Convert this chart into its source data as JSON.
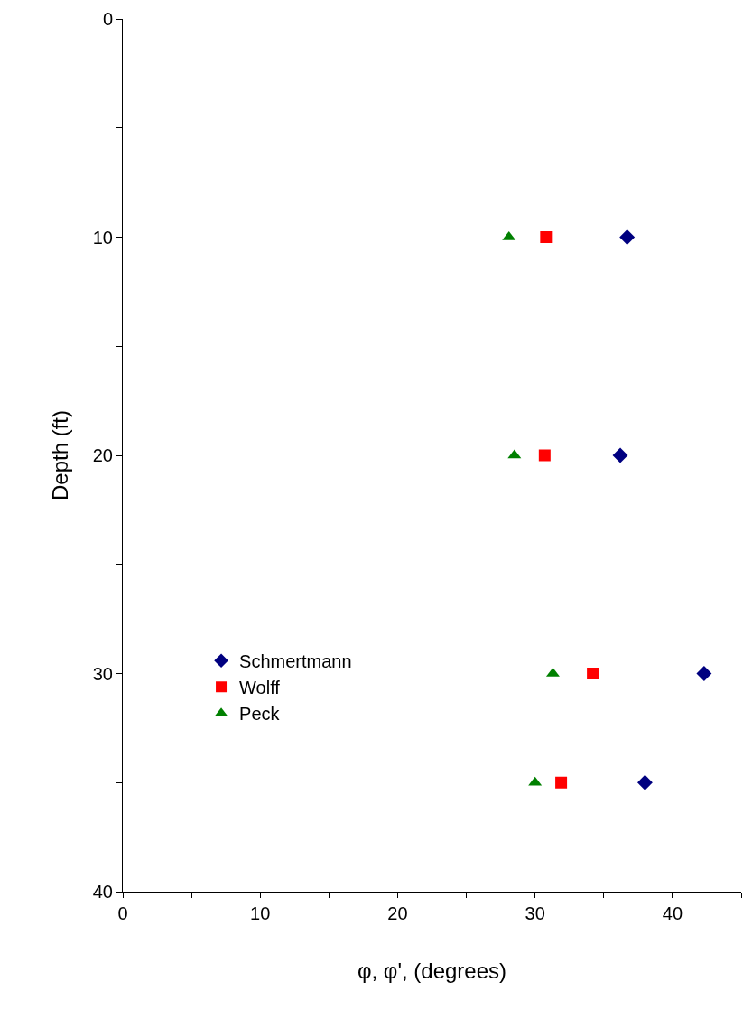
{
  "chart_data": {
    "type": "scatter",
    "xlabel": "φ, φ', (degrees)",
    "ylabel": "Depth (ft)",
    "xlim": [
      0,
      45
    ],
    "ylim": [
      40,
      0
    ],
    "xticks": [
      0,
      {
        "value": 5,
        "label": null
      },
      10,
      {
        "value": 15,
        "label": null
      },
      20,
      {
        "value": 25,
        "label": null
      },
      30,
      {
        "value": 35,
        "label": null
      },
      40,
      {
        "value": 45,
        "label": null
      }
    ],
    "yticks": [
      0,
      {
        "value": 5,
        "label": null
      },
      10,
      {
        "value": 15,
        "label": null
      },
      20,
      {
        "value": 25,
        "label": null
      },
      30,
      {
        "value": 35,
        "label": null
      },
      40
    ],
    "legend": "left",
    "series": [
      {
        "name": "Schmertmann",
        "color": "#000080",
        "marker": "diamond",
        "x": [
          36.7,
          36.2,
          42.3,
          38.0
        ],
        "values": [
          10,
          20,
          30,
          35
        ]
      },
      {
        "name": "Wolff",
        "color": "#ff0000",
        "marker": "square",
        "x": [
          30.8,
          30.7,
          34.2,
          31.9
        ],
        "values": [
          10,
          20,
          30,
          35
        ]
      },
      {
        "name": "Peck",
        "color": "#008000",
        "marker": "triangle",
        "x": [
          28.1,
          28.5,
          31.3,
          30.0
        ],
        "values": [
          10,
          20,
          30,
          35
        ]
      }
    ]
  }
}
